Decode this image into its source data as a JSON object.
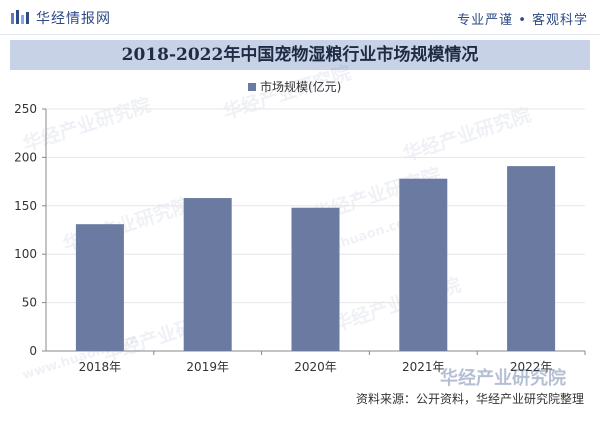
{
  "header": {
    "brand": "华经情报网",
    "tagline": "专业严谨 • 客观科学"
  },
  "footer": {
    "source": "资料来源：公开资料，华经产业研究院整理"
  },
  "watermark": {
    "text": "华经产业研究院",
    "url": "www.huaon.com"
  },
  "colors": {
    "bar": "#6a7aa0",
    "title_bg": "#c7d2e6",
    "brand": "#2f4a86",
    "grid": "#e6e6e6",
    "axis": "#888888"
  },
  "chart_data": {
    "type": "bar",
    "title": "2018-2022年中国宠物湿粮行业市场规模情况",
    "categories": [
      "2018年",
      "2019年",
      "2020年",
      "2021年",
      "2022年"
    ],
    "series": [
      {
        "name": "市场规模(亿元)",
        "values": [
          131,
          158,
          148,
          178,
          191
        ]
      }
    ],
    "ylim": [
      0,
      250
    ],
    "yticks": [
      0,
      50,
      100,
      150,
      200,
      250
    ],
    "xlabel": "",
    "ylabel": "",
    "legend_position": "top-center",
    "grid": true
  }
}
